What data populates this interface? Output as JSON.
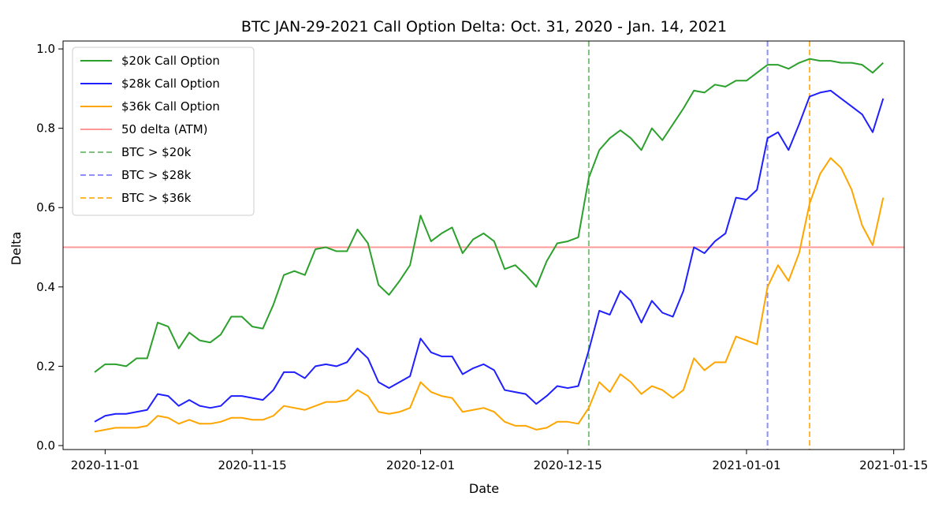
{
  "chart_data": {
    "type": "line",
    "title": "BTC JAN-29-2021 Call Option Delta: Oct. 31, 2020 - Jan. 14, 2021",
    "xlabel": "Date",
    "ylabel": "Delta",
    "xlim": [
      "2020-10-28",
      "2021-01-16"
    ],
    "ylim": [
      -0.01,
      1.02
    ],
    "x_ticks": [
      "2020-11-01",
      "2020-11-15",
      "2020-12-01",
      "2020-12-15",
      "2021-01-01",
      "2021-01-15"
    ],
    "y_ticks": [
      0.0,
      0.2,
      0.4,
      0.6,
      0.8,
      1.0
    ],
    "y_tick_labels": [
      "0.0",
      "0.2",
      "0.4",
      "0.6",
      "0.8",
      "1.0"
    ],
    "grid": false,
    "legend_position": "top-left",
    "dates": [
      "2020-10-31",
      "2020-11-01",
      "2020-11-02",
      "2020-11-03",
      "2020-11-04",
      "2020-11-05",
      "2020-11-06",
      "2020-11-07",
      "2020-11-08",
      "2020-11-09",
      "2020-11-10",
      "2020-11-11",
      "2020-11-12",
      "2020-11-13",
      "2020-11-14",
      "2020-11-15",
      "2020-11-16",
      "2020-11-17",
      "2020-11-18",
      "2020-11-19",
      "2020-11-20",
      "2020-11-21",
      "2020-11-22",
      "2020-11-23",
      "2020-11-24",
      "2020-11-25",
      "2020-11-26",
      "2020-11-27",
      "2020-11-28",
      "2020-11-29",
      "2020-11-30",
      "2020-12-01",
      "2020-12-02",
      "2020-12-03",
      "2020-12-04",
      "2020-12-05",
      "2020-12-06",
      "2020-12-07",
      "2020-12-08",
      "2020-12-09",
      "2020-12-10",
      "2020-12-11",
      "2020-12-12",
      "2020-12-13",
      "2020-12-14",
      "2020-12-15",
      "2020-12-16",
      "2020-12-17",
      "2020-12-18",
      "2020-12-19",
      "2020-12-20",
      "2020-12-21",
      "2020-12-22",
      "2020-12-23",
      "2020-12-24",
      "2020-12-25",
      "2020-12-26",
      "2020-12-27",
      "2020-12-28",
      "2020-12-29",
      "2020-12-30",
      "2020-12-31",
      "2021-01-01",
      "2021-01-02",
      "2021-01-03",
      "2021-01-04",
      "2021-01-05",
      "2021-01-06",
      "2021-01-07",
      "2021-01-08",
      "2021-01-09",
      "2021-01-10",
      "2021-01-11",
      "2021-01-12",
      "2021-01-13",
      "2021-01-14"
    ],
    "series": [
      {
        "name": "$20k Call Option",
        "color": "#2ca02c",
        "values": [
          0.185,
          0.205,
          0.205,
          0.2,
          0.22,
          0.22,
          0.31,
          0.3,
          0.245,
          0.285,
          0.265,
          0.26,
          0.28,
          0.325,
          0.325,
          0.3,
          0.295,
          0.355,
          0.43,
          0.44,
          0.43,
          0.495,
          0.5,
          0.49,
          0.49,
          0.545,
          0.51,
          0.405,
          0.38,
          0.415,
          0.455,
          0.58,
          0.515,
          0.535,
          0.55,
          0.485,
          0.52,
          0.535,
          0.515,
          0.445,
          0.455,
          0.43,
          0.4,
          0.465,
          0.51,
          0.515,
          0.525,
          0.675,
          0.745,
          0.775,
          0.795,
          0.775,
          0.745,
          0.8,
          0.77,
          0.81,
          0.85,
          0.895,
          0.89,
          0.91,
          0.905,
          0.92,
          0.92,
          0.94,
          0.96,
          0.96,
          0.95,
          0.965,
          0.975,
          0.97,
          0.97,
          0.965,
          0.965,
          0.96,
          0.94,
          0.965
        ]
      },
      {
        "name": "$28k Call Option",
        "color": "#1f1fff",
        "values": [
          0.06,
          0.075,
          0.08,
          0.08,
          0.085,
          0.09,
          0.13,
          0.125,
          0.1,
          0.115,
          0.1,
          0.095,
          0.1,
          0.125,
          0.125,
          0.12,
          0.115,
          0.14,
          0.185,
          0.185,
          0.17,
          0.2,
          0.205,
          0.2,
          0.21,
          0.245,
          0.22,
          0.16,
          0.145,
          0.16,
          0.175,
          0.27,
          0.235,
          0.225,
          0.225,
          0.18,
          0.195,
          0.205,
          0.19,
          0.14,
          0.135,
          0.13,
          0.105,
          0.125,
          0.15,
          0.145,
          0.15,
          0.24,
          0.34,
          0.33,
          0.39,
          0.365,
          0.31,
          0.365,
          0.335,
          0.325,
          0.39,
          0.5,
          0.485,
          0.515,
          0.535,
          0.625,
          0.62,
          0.645,
          0.775,
          0.79,
          0.745,
          0.81,
          0.88,
          0.89,
          0.895,
          0.875,
          0.855,
          0.835,
          0.79,
          0.875
        ]
      },
      {
        "name": "$36k Call Option",
        "color": "#ffa500",
        "values": [
          0.035,
          0.04,
          0.045,
          0.045,
          0.045,
          0.05,
          0.075,
          0.07,
          0.055,
          0.065,
          0.055,
          0.055,
          0.06,
          0.07,
          0.07,
          0.065,
          0.065,
          0.075,
          0.1,
          0.095,
          0.09,
          0.1,
          0.11,
          0.11,
          0.115,
          0.14,
          0.125,
          0.085,
          0.08,
          0.085,
          0.095,
          0.16,
          0.135,
          0.125,
          0.12,
          0.085,
          0.09,
          0.095,
          0.085,
          0.06,
          0.05,
          0.05,
          0.04,
          0.045,
          0.06,
          0.06,
          0.055,
          0.095,
          0.16,
          0.135,
          0.18,
          0.16,
          0.13,
          0.15,
          0.14,
          0.12,
          0.14,
          0.22,
          0.19,
          0.21,
          0.21,
          0.275,
          0.265,
          0.255,
          0.4,
          0.455,
          0.415,
          0.485,
          0.61,
          0.685,
          0.725,
          0.7,
          0.645,
          0.555,
          0.505,
          0.625
        ]
      }
    ],
    "reference_lines": [
      {
        "kind": "horizontal",
        "y": 0.5,
        "name": "50 delta (ATM)",
        "color": "#ff9999",
        "style": "solid"
      },
      {
        "kind": "vertical",
        "x": "2020-12-17",
        "name": "BTC > $20k",
        "color": "#7fbf7f",
        "style": "dashed"
      },
      {
        "kind": "vertical",
        "x": "2021-01-03",
        "name": "BTC > $28k",
        "color": "#8f8fff",
        "style": "dashed"
      },
      {
        "kind": "vertical",
        "x": "2021-01-07",
        "name": "BTC > $36k",
        "color": "#ffb733",
        "style": "dashed"
      }
    ]
  }
}
